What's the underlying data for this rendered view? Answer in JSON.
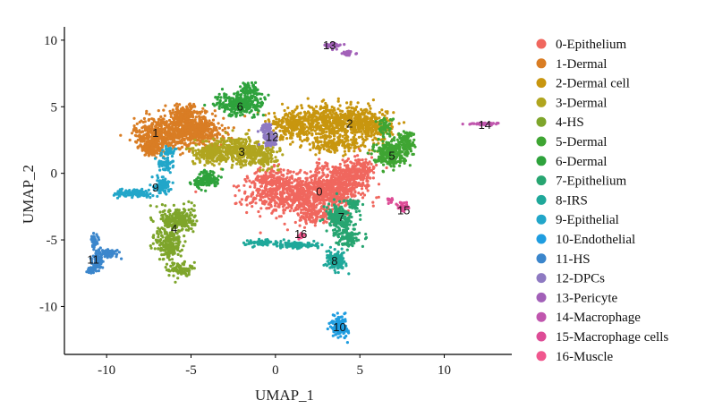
{
  "chart_data": {
    "type": "scatter",
    "xlabel": "UMAP_1",
    "ylabel": "UMAP_2",
    "xlim": [
      -12.5,
      14
    ],
    "ylim": [
      -13.6,
      11
    ],
    "xticks": [
      -10,
      -5,
      0,
      5,
      10
    ],
    "yticks": [
      -10,
      -5,
      0,
      5,
      10
    ],
    "xtick_labels": [
      "-10",
      "-5",
      "0",
      "5",
      "10"
    ],
    "ytick_labels": [
      "-10",
      "-5",
      "0",
      "5",
      "10"
    ],
    "grid": false,
    "legend_position": "right",
    "series": [
      {
        "name": "0-Epithelium",
        "label": "0",
        "color": "#F0675E",
        "label_at": [
          2.6,
          -1.4
        ],
        "blobs": [
          [
            1.5,
            -1.7,
            2.8,
            1.2,
            700
          ],
          [
            3.5,
            -0.8,
            1.6,
            1.4,
            400
          ],
          [
            5.0,
            0.2,
            0.9,
            0.9,
            200
          ],
          [
            -0.2,
            -0.5,
            1.2,
            0.8,
            200
          ],
          [
            2.5,
            -3.2,
            1.2,
            0.6,
            120
          ]
        ]
      },
      {
        "name": "1-Dermal",
        "label": "1",
        "color": "#D97D24",
        "label_at": [
          -7.1,
          3.0
        ],
        "blobs": [
          [
            -6.7,
            3.0,
            1.5,
            1.1,
            450
          ],
          [
            -4.6,
            3.1,
            1.4,
            1.0,
            400
          ],
          [
            -5.4,
            4.4,
            1.0,
            0.7,
            200
          ],
          [
            -7.3,
            1.9,
            0.7,
            0.6,
            120
          ]
        ]
      },
      {
        "name": "2-Dermal cell",
        "label": "2",
        "color": "#C8960F",
        "label_at": [
          4.4,
          3.7
        ],
        "blobs": [
          [
            3.2,
            3.8,
            2.6,
            1.1,
            650
          ],
          [
            5.6,
            3.6,
            1.2,
            1.1,
            250
          ],
          [
            1.0,
            3.5,
            1.0,
            0.9,
            150
          ],
          [
            3.5,
            2.1,
            1.6,
            0.5,
            150
          ]
        ]
      },
      {
        "name": "3-Dermal",
        "label": "3",
        "color": "#B0A51F",
        "label_at": [
          -2.0,
          1.6
        ],
        "blobs": [
          [
            -2.4,
            1.7,
            1.7,
            0.9,
            400
          ],
          [
            -0.8,
            1.3,
            0.9,
            0.7,
            150
          ],
          [
            -4.0,
            1.5,
            0.8,
            0.6,
            120
          ]
        ]
      },
      {
        "name": "4-HS",
        "label": "4",
        "color": "#7EA52B",
        "label_at": [
          -6.0,
          -4.2
        ],
        "blobs": [
          [
            -5.8,
            -3.5,
            0.9,
            0.9,
            250
          ],
          [
            -6.3,
            -5.3,
            0.7,
            1.1,
            200
          ],
          [
            -5.7,
            -7.2,
            0.6,
            0.5,
            80
          ]
        ]
      },
      {
        "name": "5-Dermal",
        "label": "5",
        "color": "#3FA533",
        "label_at": [
          6.9,
          1.3
        ],
        "blobs": [
          [
            6.7,
            1.5,
            0.8,
            0.8,
            250
          ],
          [
            7.7,
            2.3,
            0.5,
            0.9,
            120
          ],
          [
            6.5,
            3.5,
            0.4,
            0.6,
            60
          ]
        ]
      },
      {
        "name": "6-Dermal",
        "label": "6",
        "color": "#2EA23C",
        "label_at": [
          -2.1,
          5.0
        ],
        "blobs": [
          [
            -2.1,
            5.2,
            1.3,
            0.8,
            280
          ],
          [
            -1.5,
            6.4,
            0.5,
            0.5,
            60
          ],
          [
            -3.9,
            -0.4,
            0.6,
            0.6,
            90
          ],
          [
            -4.5,
            -0.7,
            0.5,
            0.4,
            40
          ]
        ]
      },
      {
        "name": "7-Epithelium",
        "label": "7",
        "color": "#27A571",
        "label_at": [
          3.9,
          -3.3
        ],
        "blobs": [
          [
            3.8,
            -3.4,
            0.7,
            0.9,
            220
          ],
          [
            4.3,
            -4.8,
            0.6,
            0.6,
            100
          ],
          [
            4.6,
            -2.3,
            0.4,
            0.4,
            40
          ]
        ]
      },
      {
        "name": "8-IRS",
        "label": "8",
        "color": "#1FA89A",
        "label_at": [
          3.5,
          -6.6
        ],
        "blobs": [
          [
            3.6,
            -6.6,
            0.5,
            0.6,
            150
          ],
          [
            1.3,
            -5.4,
            1.1,
            0.2,
            120
          ],
          [
            -0.9,
            -5.2,
            0.9,
            0.2,
            70
          ]
        ]
      },
      {
        "name": "9-Epithelial",
        "label": "9",
        "color": "#22A6C9",
        "label_at": [
          -7.1,
          -1.1
        ],
        "blobs": [
          [
            -8.3,
            -1.5,
            1.0,
            0.25,
            130
          ],
          [
            -6.7,
            -0.9,
            0.4,
            0.6,
            90
          ],
          [
            -6.5,
            0.8,
            0.4,
            0.6,
            60
          ],
          [
            -6.3,
            1.7,
            0.3,
            0.3,
            30
          ]
        ]
      },
      {
        "name": "10-Endothelial",
        "label": "10",
        "color": "#1F9DE0",
        "label_at": [
          3.8,
          -11.6
        ],
        "blobs": [
          [
            3.8,
            -11.5,
            0.45,
            0.7,
            150
          ]
        ]
      },
      {
        "name": "11-HS",
        "label": "11",
        "color": "#3B86CC",
        "label_at": [
          -10.8,
          -6.5
        ],
        "blobs": [
          [
            -10.5,
            -6.5,
            0.3,
            0.6,
            100
          ],
          [
            -10.7,
            -5.1,
            0.2,
            0.5,
            50
          ],
          [
            -9.8,
            -6.0,
            0.5,
            0.3,
            50
          ],
          [
            -10.9,
            -7.3,
            0.3,
            0.2,
            40
          ]
        ]
      },
      {
        "name": "12-DPCs",
        "label": "12",
        "color": "#8E7AC2",
        "label_at": [
          -0.2,
          2.7
        ],
        "blobs": [
          [
            -0.3,
            2.6,
            0.4,
            0.5,
            80
          ],
          [
            -0.5,
            3.4,
            0.3,
            0.3,
            40
          ]
        ]
      },
      {
        "name": "13-Pericyte",
        "label": "13",
        "color": "#A260B8",
        "label_at": [
          3.2,
          9.6
        ],
        "blobs": [
          [
            3.4,
            9.6,
            0.5,
            0.2,
            40
          ],
          [
            4.3,
            9.0,
            0.3,
            0.15,
            25
          ]
        ]
      },
      {
        "name": "14-Macrophage",
        "label": "14",
        "color": "#C056AE",
        "label_at": [
          12.4,
          3.6
        ],
        "blobs": [
          [
            12.3,
            3.7,
            0.8,
            0.1,
            50
          ]
        ]
      },
      {
        "name": "15-Macrophage cells",
        "label": "15",
        "color": "#DD4C96",
        "label_at": [
          7.6,
          -2.8
        ],
        "blobs": [
          [
            7.6,
            -2.5,
            0.3,
            0.3,
            40
          ],
          [
            6.8,
            -2.0,
            0.2,
            0.2,
            15
          ]
        ]
      },
      {
        "name": "16-Muscle",
        "label": "16",
        "color": "#F0578E",
        "label_at": [
          1.5,
          -4.6
        ],
        "blobs": [
          [
            1.5,
            -4.7,
            0.2,
            0.2,
            20
          ]
        ]
      }
    ]
  }
}
